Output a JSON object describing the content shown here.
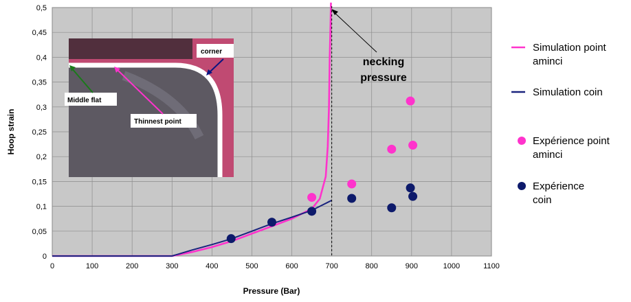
{
  "chart_data": {
    "type": "line",
    "title": "",
    "xlabel": "Pressure (Bar)",
    "ylabel": "Hoop strain",
    "xlim": [
      0,
      1100
    ],
    "ylim": [
      0,
      0.5
    ],
    "x_ticks": [
      "0",
      "100",
      "200",
      "300",
      "400",
      "500",
      "600",
      "700",
      "800",
      "900",
      "1000",
      "1100"
    ],
    "y_ticks": [
      "0",
      "0,05",
      "0,1",
      "0,15",
      "0,2",
      "0,25",
      "0,3",
      "0,35",
      "0,4",
      "0,45",
      "0,5"
    ],
    "grid": true,
    "legend_position": "right",
    "series": [
      {
        "name": "Simulation point aminci",
        "type": "line",
        "color": "#ff33cc",
        "x": [
          0,
          300,
          350,
          400,
          450,
          500,
          550,
          600,
          650,
          670,
          685,
          690,
          693,
          695,
          697,
          698
        ],
        "y": [
          0,
          0,
          0.008,
          0.018,
          0.03,
          0.045,
          0.06,
          0.075,
          0.095,
          0.115,
          0.16,
          0.22,
          0.3,
          0.4,
          0.47,
          0.51
        ]
      },
      {
        "name": "Simulation coin",
        "type": "line",
        "color": "#1a237e",
        "x": [
          0,
          300,
          350,
          400,
          450,
          500,
          550,
          600,
          650,
          670,
          690,
          700
        ],
        "y": [
          0,
          0,
          0.012,
          0.023,
          0.035,
          0.05,
          0.065,
          0.078,
          0.092,
          0.1,
          0.108,
          0.112
        ]
      },
      {
        "name": "Expérience point aminci",
        "type": "scatter",
        "color": "#ff33cc",
        "x": [
          650,
          750,
          850,
          897,
          903
        ],
        "y": [
          0.118,
          0.145,
          0.215,
          0.312,
          0.223
        ]
      },
      {
        "name": "Expérience coin",
        "type": "scatter",
        "color": "#0d1a6b",
        "x": [
          448,
          550,
          650,
          750,
          850,
          897,
          903
        ],
        "y": [
          0.035,
          0.068,
          0.09,
          0.116,
          0.097,
          0.137,
          0.12
        ]
      }
    ],
    "annotations": {
      "necking": "necking\npressure",
      "necking_x": 700,
      "inset_labels": [
        "corner",
        "Middle flat",
        "Thinnest point"
      ]
    }
  },
  "colors": {
    "plot_bg": "#c8c8c8",
    "grid": "#8c8c8c",
    "inset_bg": "#c04a72",
    "inset_metal": "#5d5962",
    "inset_border": "#ffffff"
  }
}
